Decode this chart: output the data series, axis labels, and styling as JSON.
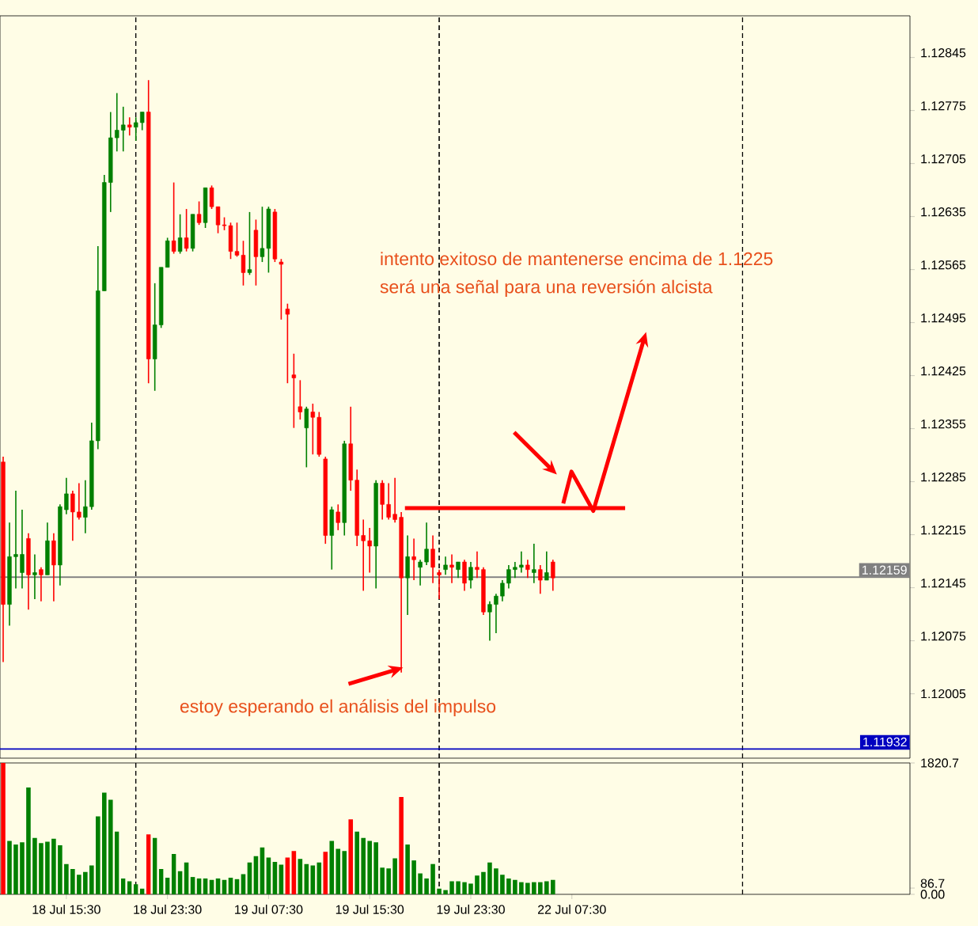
{
  "chart_data": [
    {
      "type": "candlestick",
      "categories": [
        null,
        null,
        null,
        null,
        null,
        null,
        null,
        null,
        null,
        null,
        null,
        null,
        null,
        null,
        null,
        null,
        null,
        null,
        null,
        null,
        null,
        null,
        null,
        null,
        null,
        null,
        null,
        null,
        null,
        null,
        null,
        null,
        null,
        null,
        null,
        null,
        null,
        null,
        null,
        null,
        null,
        null,
        null,
        null,
        null,
        null,
        null,
        null,
        null,
        null,
        null,
        null,
        null,
        null,
        null,
        null,
        null,
        null,
        null,
        null,
        null,
        null,
        null,
        null,
        null,
        null,
        null,
        null,
        null,
        null,
        null,
        null,
        null,
        null,
        null,
        null,
        null,
        null,
        null,
        null,
        null,
        null,
        null,
        null,
        null,
        null,
        null,
        null,
        null,
        null,
        null,
        null,
        null,
        null,
        null,
        null,
        null,
        null,
        null,
        null,
        null,
        null,
        null,
        null,
        null,
        null,
        null,
        null,
        null,
        null,
        null,
        null,
        null,
        null,
        null,
        null,
        null,
        null,
        null,
        null,
        null,
        null,
        null,
        null,
        null,
        null,
        null,
        null,
        null,
        null,
        null,
        null,
        null,
        null,
        null,
        null,
        null,
        null,
        null,
        null,
        null,
        null,
        null,
        null
      ],
      "ohlc": [
        [
          1.12311,
          1.12318,
          1.12047,
          1.12123
        ],
        [
          1.12123,
          1.12231,
          1.12095,
          1.12186
        ],
        [
          1.12186,
          1.12273,
          1.12144,
          1.12189
        ],
        [
          1.12165,
          1.12248,
          1.12144,
          1.12189
        ],
        [
          1.1221,
          1.12217,
          1.12116,
          1.12162
        ],
        [
          1.12162,
          1.12189,
          1.1213,
          1.12165
        ],
        [
          1.12169,
          1.12172,
          1.12127,
          1.12162
        ],
        [
          1.12162,
          1.12231,
          1.12162,
          1.12207
        ],
        [
          1.12207,
          1.12217,
          1.12127,
          1.12175
        ],
        [
          1.12175,
          1.12255,
          1.12148,
          1.12252
        ],
        [
          1.12248,
          1.1229,
          1.12242,
          1.12269
        ],
        [
          1.12269,
          1.12273,
          1.12207,
          1.12245
        ],
        [
          1.12245,
          1.12283,
          1.12235,
          1.12238
        ],
        [
          1.12238,
          1.12287,
          1.12217,
          1.12252
        ],
        [
          1.12252,
          1.12363,
          1.12248,
          1.12339
        ],
        [
          1.12339,
          1.12596,
          1.12328,
          1.12537
        ],
        [
          1.12537,
          1.1269,
          1.12537,
          1.1268
        ],
        [
          1.1268,
          1.12773,
          1.12641,
          1.12739
        ],
        [
          1.12739,
          1.12798,
          1.12721,
          1.12749
        ],
        [
          1.12749,
          1.1278,
          1.12721,
          1.12756
        ],
        [
          1.12756,
          1.12766,
          1.12742,
          1.12753
        ],
        [
          1.12753,
          1.12766,
          1.12735,
          1.12759
        ],
        [
          1.12759,
          1.12773,
          1.12749,
          1.12773
        ],
        [
          1.12773,
          1.12815,
          1.12415,
          1.12447
        ],
        [
          1.12447,
          1.12547,
          1.12405,
          1.12492
        ],
        [
          1.12492,
          1.12568,
          1.12488,
          1.12568
        ],
        [
          1.12568,
          1.12607,
          1.12568,
          1.12603
        ],
        [
          1.12603,
          1.1268,
          1.12586,
          1.12589
        ],
        [
          1.12589,
          1.12638,
          1.12586,
          1.12607
        ],
        [
          1.12607,
          1.12645,
          1.12589,
          1.12593
        ],
        [
          1.12593,
          1.12638,
          1.12589,
          1.12638
        ],
        [
          1.12638,
          1.12655,
          1.12624,
          1.12627
        ],
        [
          1.12627,
          1.12673,
          1.1262,
          1.12673
        ],
        [
          1.12673,
          1.12676,
          1.12645,
          1.12648
        ],
        [
          1.12648,
          1.12648,
          1.12613,
          1.12624
        ],
        [
          1.12624,
          1.12634,
          1.12617,
          1.12623
        ],
        [
          1.12623,
          1.12627,
          1.12579,
          1.12589
        ],
        [
          1.12589,
          1.12627,
          1.12582,
          1.12584
        ],
        [
          1.12584,
          1.12603,
          1.12544,
          1.12561
        ],
        [
          1.12561,
          1.12641,
          1.12558,
          1.12565
        ],
        [
          1.12617,
          1.12631,
          1.12544,
          1.12582
        ],
        [
          1.12582,
          1.12648,
          1.12575,
          1.12593
        ],
        [
          1.12593,
          1.12648,
          1.12561,
          1.12645
        ],
        [
          1.12641,
          1.12645,
          1.12575,
          1.12579
        ],
        [
          1.12575,
          1.12579,
          1.12499,
          1.12572
        ],
        [
          1.12513,
          1.1252,
          1.12415,
          1.12506
        ],
        [
          1.12426,
          1.12454,
          1.12356,
          1.12422
        ],
        [
          1.12384,
          1.12419,
          1.12367,
          1.12377
        ],
        [
          1.12356,
          1.12384,
          1.12304,
          1.12381
        ],
        [
          1.12377,
          1.12388,
          1.12321,
          1.1237
        ],
        [
          1.1237,
          1.12377,
          1.12318,
          1.12321
        ],
        [
          1.12315,
          1.12318,
          1.12203,
          1.12214
        ],
        [
          1.12214,
          1.12252,
          1.12169,
          1.12248
        ],
        [
          1.12245,
          1.12255,
          1.12221,
          1.12231
        ],
        [
          1.12231,
          1.12339,
          1.12214,
          1.12335
        ],
        [
          1.12335,
          1.12384,
          1.12273,
          1.12287
        ],
        [
          1.12287,
          1.12301,
          1.122,
          1.12214
        ],
        [
          1.12214,
          1.12235,
          1.12141,
          1.12207
        ],
        [
          1.12207,
          1.12224,
          1.12165,
          1.122
        ],
        [
          1.122,
          1.12287,
          1.12144,
          1.12283
        ],
        [
          1.12283,
          1.12287,
          1.12235,
          1.12255
        ],
        [
          1.12255,
          1.12283,
          1.12235,
          1.12238
        ],
        [
          1.12242,
          1.1229,
          1.12231,
          1.12235
        ],
        [
          1.12238,
          1.12245,
          1.12033,
          1.12158
        ],
        [
          1.12158,
          1.12214,
          1.12109,
          1.12186
        ],
        [
          1.12186,
          1.1221,
          1.12155,
          1.12182
        ],
        [
          1.12172,
          1.12182,
          1.12148,
          1.12179
        ],
        [
          1.12179,
          1.12231,
          1.12175,
          1.12196
        ],
        [
          1.12196,
          1.12214,
          1.12151,
          1.12172
        ],
        [
          1.12165,
          1.12169,
          1.1213,
          1.12162
        ],
        [
          1.12169,
          1.12186,
          1.12162,
          1.12175
        ],
        [
          1.12175,
          1.12189,
          1.12151,
          1.12172
        ],
        [
          1.12169,
          1.12179,
          1.12158,
          1.12179
        ],
        [
          1.12179,
          1.12182,
          1.12141,
          1.12151
        ],
        [
          1.12155,
          1.12179,
          1.12144,
          1.12172
        ],
        [
          1.12172,
          1.12193,
          1.12158,
          1.12169
        ],
        [
          1.12169,
          1.12172,
          1.12109,
          1.12113
        ],
        [
          1.12113,
          1.12127,
          1.12075,
          1.12123
        ],
        [
          1.12123,
          1.12137,
          1.12085,
          1.12134
        ],
        [
          1.12134,
          1.12155,
          1.12127,
          1.12151
        ],
        [
          1.12151,
          1.12175,
          1.12144,
          1.12169
        ],
        [
          1.12169,
          1.12179,
          1.12158,
          1.12172
        ],
        [
          1.12172,
          1.12193,
          1.12165,
          1.12175
        ],
        [
          1.12175,
          1.12182,
          1.12158,
          1.12169
        ],
        [
          1.12165,
          1.12203,
          1.12151,
          1.12169
        ],
        [
          1.12169,
          1.12175,
          1.12137,
          1.12155
        ],
        [
          1.12155,
          1.12193,
          1.12155,
          1.12165
        ],
        [
          1.12179,
          1.12182,
          1.12141,
          1.12158
        ],
        null,
        null,
        null,
        null,
        null,
        null,
        null,
        null,
        null,
        null,
        null,
        null,
        null,
        null,
        null,
        null,
        null,
        null,
        null,
        null,
        null,
        null,
        null,
        null,
        null,
        null,
        null,
        null,
        null,
        null,
        null,
        null,
        null,
        null,
        null,
        null,
        null,
        null,
        null,
        null,
        null,
        null,
        null,
        null,
        null,
        null,
        null,
        null,
        null,
        null,
        null,
        null,
        null,
        null,
        null,
        null
      ],
      "colors": [
        "#ff0000",
        "#008000",
        "#008000",
        "#008000",
        "#ff0000",
        "#008000",
        "#ff0000",
        "#008000",
        "#ff0000",
        "#008000",
        "#008000",
        "#ff0000",
        "#ff0000",
        "#008000",
        "#008000",
        "#008000",
        "#008000",
        "#008000",
        "#008000",
        "#008000",
        "#ff0000",
        "#008000",
        "#008000",
        "#ff0000",
        "#008000",
        "#008000",
        "#008000",
        "#ff0000",
        "#008000",
        "#ff0000",
        "#008000",
        "#ff0000",
        "#008000",
        "#ff0000",
        "#ff0000",
        "#ff0000",
        "#ff0000",
        "#ff0000",
        "#ff0000",
        "#008000",
        "#ff0000",
        "#008000",
        "#008000",
        "#ff0000",
        "#ff0000",
        "#ff0000",
        "#ff0000",
        "#ff0000",
        "#008000",
        "#ff0000",
        "#ff0000",
        "#ff0000",
        "#008000",
        "#ff0000",
        "#008000",
        "#ff0000",
        "#ff0000",
        "#ff0000",
        "#ff0000",
        "#008000",
        "#ff0000",
        "#ff0000",
        "#ff0000",
        "#ff0000",
        "#008000",
        "#ff0000",
        "#008000",
        "#008000",
        "#ff0000",
        "#ff0000",
        "#008000",
        "#ff0000",
        "#008000",
        "#ff0000",
        "#008000",
        "#ff0000",
        "#ff0000",
        "#008000",
        "#008000",
        "#008000",
        "#008000",
        "#008000",
        "#008000",
        "#ff0000",
        "#008000",
        "#ff0000",
        "#008000",
        "#ff0000",
        null,
        null,
        null,
        null,
        null,
        null,
        null,
        null,
        null,
        null,
        null,
        null,
        null,
        null,
        null,
        null,
        null,
        null,
        null,
        null,
        null,
        null,
        null,
        null,
        null,
        null,
        null,
        null,
        null,
        null,
        null,
        null,
        null,
        null,
        null,
        null,
        null,
        null,
        null,
        null,
        null,
        null,
        null,
        null,
        null,
        null,
        null,
        null,
        null,
        null,
        null,
        null,
        null,
        null,
        null,
        null
      ],
      "ylim": [
        1.1192,
        1.129
      ],
      "yticks": [
        1.12845,
        1.12775,
        1.12705,
        1.12635,
        1.12565,
        1.12495,
        1.12425,
        1.12355,
        1.12285,
        1.12215,
        1.12145,
        1.12075,
        1.12005
      ],
      "tick_labels": "y",
      "ref_lines": [
        {
          "axis": "y",
          "value": 1.12159,
          "label": "1.12159",
          "color": "#808080",
          "line_style": "solid"
        },
        {
          "axis": "y",
          "value": 1.11932,
          "label": "1.11932",
          "color": "#0000c0",
          "line_style": "solid"
        },
        {
          "axis": "y",
          "value": 1.1225,
          "color": "#ff0000",
          "line_style": "solid"
        }
      ],
      "annotations": [
        "intento exitoso de mantenerse encima de 1.1225",
        "será una señal para una reversión alcista",
        "estoy esperando el análisis del impulso"
      ]
    },
    {
      "type": "bar",
      "categories": [
        null,
        null,
        null,
        null,
        null,
        null,
        null,
        null,
        null,
        null,
        "18 Jul 15:30",
        null,
        null,
        null,
        null,
        null,
        null,
        null,
        null,
        null,
        null,
        null,
        null,
        null,
        null,
        null,
        "18 Jul 23:30",
        null,
        null,
        null,
        null,
        null,
        null,
        null,
        null,
        null,
        null,
        null,
        null,
        null,
        null,
        null,
        "19 Jul 07:30",
        null,
        null,
        null,
        null,
        null,
        null,
        null,
        null,
        null,
        null,
        null,
        null,
        null,
        null,
        null,
        "19 Jul 15:30",
        null,
        null,
        null,
        null,
        null,
        null,
        null,
        null,
        null,
        null,
        null,
        null,
        null,
        null,
        null,
        "19 Jul 23:30",
        null,
        null,
        null,
        null,
        null,
        null,
        null,
        null,
        null,
        null,
        null,
        null,
        null,
        null,
        null,
        "22 Jul 07:30",
        null,
        null,
        null,
        null,
        null,
        null,
        null,
        null,
        null,
        null,
        null,
        null,
        null,
        null,
        null,
        null,
        null,
        null,
        null,
        null,
        null,
        null,
        null,
        null,
        null,
        null,
        null,
        null,
        null,
        null,
        null,
        null,
        null,
        null,
        null,
        null,
        null,
        null,
        null,
        null,
        null,
        null,
        null,
        null,
        null,
        null,
        null,
        null,
        null,
        null,
        null,
        null,
        null
      ],
      "values": [
        1820,
        740,
        690,
        720,
        1480,
        780,
        710,
        730,
        770,
        680,
        420,
        350,
        270,
        310,
        400,
        1080,
        1410,
        1310,
        870,
        220,
        180,
        140,
        80,
        830,
        780,
        350,
        230,
        560,
        320,
        440,
        240,
        220,
        220,
        200,
        220,
        200,
        230,
        210,
        280,
        440,
        530,
        650,
        510,
        450,
        410,
        510,
        600,
        490,
        420,
        400,
        440,
        590,
        740,
        630,
        600,
        1040,
        870,
        780,
        740,
        720,
        370,
        360,
        500,
        1350,
        690,
        470,
        290,
        220,
        420,
        80,
        60,
        180,
        180,
        170,
        150,
        260,
        310,
        440,
        360,
        270,
        220,
        200,
        170,
        160,
        170,
        170,
        180,
        200,
        null,
        null,
        null,
        null,
        null,
        null,
        null,
        null,
        null,
        null,
        null,
        null,
        null,
        null,
        null,
        null,
        null,
        null,
        null,
        null,
        null,
        null,
        null,
        null,
        null,
        null,
        null,
        null,
        null,
        null,
        null,
        null,
        null,
        null,
        null,
        null,
        null,
        null,
        null,
        null,
        null,
        null,
        null,
        null,
        null,
        null,
        null,
        null,
        null,
        null,
        null,
        null,
        null,
        null,
        null,
        null
      ],
      "colors": [
        "#ff0000",
        "#008000",
        "#008000",
        "#008000",
        "#008000",
        "#008000",
        "#008000",
        "#008000",
        "#008000",
        "#008000",
        "#008000",
        "#008000",
        "#008000",
        "#008000",
        "#008000",
        "#008000",
        "#008000",
        "#008000",
        "#008000",
        "#008000",
        "#008000",
        "#008000",
        "#008000",
        "#ff0000",
        "#008000",
        "#008000",
        "#008000",
        "#008000",
        "#008000",
        "#008000",
        "#008000",
        "#008000",
        "#008000",
        "#008000",
        "#008000",
        "#008000",
        "#008000",
        "#008000",
        "#008000",
        "#008000",
        "#008000",
        "#008000",
        "#008000",
        "#008000",
        "#008000",
        "#ff0000",
        "#ff0000",
        "#008000",
        "#008000",
        "#008000",
        "#008000",
        "#ff0000",
        "#008000",
        "#008000",
        "#008000",
        "#ff0000",
        "#008000",
        "#008000",
        "#008000",
        "#008000",
        "#008000",
        "#008000",
        "#008000",
        "#ff0000",
        "#008000",
        "#008000",
        "#008000",
        "#008000",
        "#008000",
        "#008000",
        "#008000",
        "#008000",
        "#008000",
        "#008000",
        "#008000",
        "#008000",
        "#008000",
        "#008000",
        "#008000",
        "#008000",
        "#008000",
        "#008000",
        "#008000",
        "#008000",
        "#008000",
        "#008000",
        "#008000",
        "#008000",
        null,
        null,
        null,
        null,
        null,
        null,
        null,
        null,
        null,
        null,
        null,
        null,
        null,
        null,
        null,
        null,
        null,
        null,
        null,
        null,
        null,
        null,
        null,
        null,
        null,
        null,
        null,
        null,
        null,
        null,
        null,
        null,
        null,
        null,
        null,
        null,
        null,
        null,
        null,
        null,
        null,
        null,
        null,
        null,
        null,
        null,
        null,
        null,
        null,
        null,
        null,
        null,
        null,
        null,
        null,
        null
      ],
      "ylim": [
        0,
        1820.7
      ],
      "yticks": [
        {
          "value": 0,
          "label": "0.00"
        },
        {
          "value": 86.7,
          "label": "86.7"
        },
        {
          "value": 1820.7,
          "label": "1820.7"
        }
      ]
    }
  ]
}
